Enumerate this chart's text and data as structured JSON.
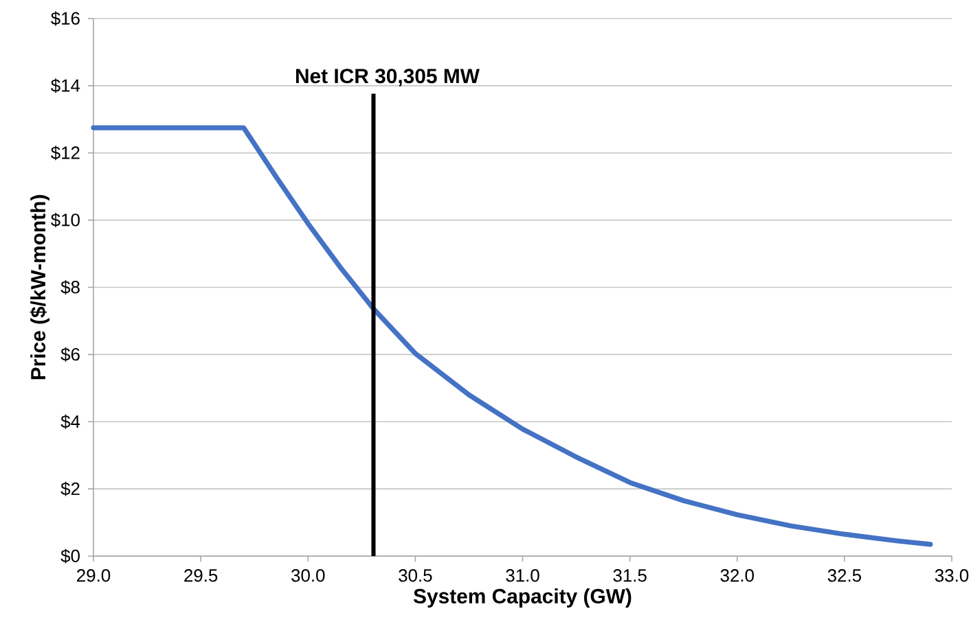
{
  "chart_data": {
    "type": "line",
    "xlabel": "System Capacity (GW)",
    "ylabel": "Price ($/kW-month)",
    "x": [
      29.0,
      29.7,
      29.85,
      30.0,
      30.15,
      30.305,
      30.5,
      30.75,
      31.0,
      31.25,
      31.5,
      31.75,
      32.0,
      32.25,
      32.5,
      32.75,
      32.9
    ],
    "series": [
      {
        "color": "#4472c4",
        "values": [
          12.75,
          12.75,
          11.3,
          9.9,
          8.6,
          7.36,
          6.03,
          4.8,
          3.78,
          2.95,
          2.19,
          1.65,
          1.23,
          0.9,
          0.65,
          0.45,
          0.35
        ]
      }
    ],
    "xlim": [
      29,
      33
    ],
    "ylim": [
      0,
      16
    ],
    "xticks": [
      {
        "value": 29,
        "label": "29.0"
      },
      {
        "value": 29.5,
        "label": "29.5"
      },
      {
        "value": 30,
        "label": "30.0"
      },
      {
        "value": 30.5,
        "label": "30.5"
      },
      {
        "value": 31,
        "label": "31.0"
      },
      {
        "value": 31.5,
        "label": "31.5"
      },
      {
        "value": 32,
        "label": "32.0"
      },
      {
        "value": 32.5,
        "label": "32.5"
      },
      {
        "value": 33,
        "label": "33.0"
      }
    ],
    "yticks": [
      {
        "value": 0,
        "label": "$0"
      },
      {
        "value": 2,
        "label": "$2"
      },
      {
        "value": 4,
        "label": "$4"
      },
      {
        "value": 6,
        "label": "$6"
      },
      {
        "value": 8,
        "label": "$8"
      },
      {
        "value": 10,
        "label": "$10"
      },
      {
        "value": 12,
        "label": "$12"
      },
      {
        "value": 14,
        "label": "$14"
      },
      {
        "value": 16,
        "label": "$16"
      }
    ],
    "grid": "y",
    "line_style": "solid",
    "ref_lines": [
      {
        "axis": "x",
        "value": 30.305,
        "label": "Net ICR  30,305 MW",
        "color": "#000000"
      }
    ]
  }
}
